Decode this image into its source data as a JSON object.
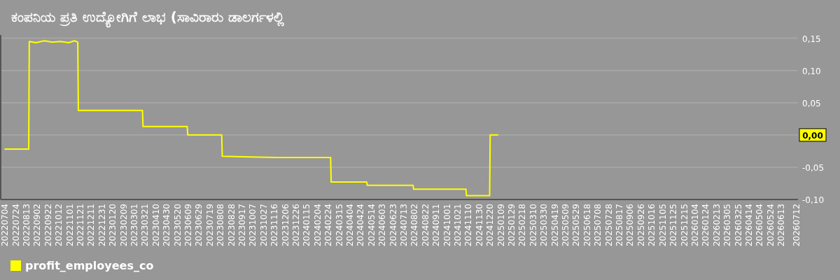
{
  "chart_data": {
    "type": "line",
    "title": "ಕಂಪನಿಯ ಪ್ರತಿ ಉದ್ಯೋಗಿಗೆ ಲಾಭ (ಸಾವಿರಾರು ಡಾಲರ್ಗಳಲ್ಲಿ",
    "series": [
      {
        "name": "profit_employees_co",
        "color": "#ffff00",
        "line_style": "solid",
        "marker": "none",
        "x": [
          "2022-07-04",
          "2022-07-20",
          "2022-08-05",
          "2022-08-17",
          "2022-08-18",
          "2022-08-30",
          "2022-09-15",
          "2022-09-30",
          "2022-10-15",
          "2022-10-30",
          "2022-11-10",
          "2022-11-16",
          "2022-11-17",
          "2023-01-10",
          "2023-03-16",
          "2023-03-17",
          "2023-06-07",
          "2023-06-08",
          "2023-08-10",
          "2023-08-11",
          "2023-10-05",
          "2023-11-20",
          "2024-02-28",
          "2024-02-29",
          "2024-05-05",
          "2024-05-06",
          "2024-07-30",
          "2024-07-31",
          "2024-11-05",
          "2024-11-06",
          "2024-12-19",
          "2024-12-20",
          "2025-01-03"
        ],
        "values": [
          -0.022,
          -0.022,
          -0.022,
          -0.022,
          0.145,
          0.143,
          0.146,
          0.144,
          0.145,
          0.143,
          0.146,
          0.144,
          0.038,
          0.038,
          0.038,
          0.013,
          0.013,
          0.0,
          0.0,
          -0.033,
          -0.034,
          -0.035,
          -0.035,
          -0.073,
          -0.073,
          -0.078,
          -0.078,
          -0.084,
          -0.084,
          -0.094,
          -0.094,
          0.0,
          0.0
        ]
      }
    ],
    "annotations": [
      "0,00"
    ],
    "xlim": [
      "2022-06-26",
      "2026-07-14"
    ],
    "xticks": [
      {
        "value": "2022-07-04",
        "label": "20220704"
      },
      {
        "value": "2022-07-24",
        "label": "20220724"
      },
      {
        "value": "2022-08-13",
        "label": "20220813"
      },
      {
        "value": "2022-09-02",
        "label": "20220902"
      },
      {
        "value": "2022-09-22",
        "label": "20220922"
      },
      {
        "value": "2022-10-12",
        "label": "20221012"
      },
      {
        "value": "2022-11-01",
        "label": "20221101"
      },
      {
        "value": "2022-11-21",
        "label": "20221121"
      },
      {
        "value": "2022-12-11",
        "label": "20221211"
      },
      {
        "value": "2022-12-31",
        "label": "20221231"
      },
      {
        "value": "2023-01-20",
        "label": "20230120"
      },
      {
        "value": "2023-02-09",
        "label": "20230209"
      },
      {
        "value": "2023-03-01",
        "label": "20230301"
      },
      {
        "value": "2023-03-21",
        "label": "20230321"
      },
      {
        "value": "2023-04-10",
        "label": "20230410"
      },
      {
        "value": "2023-04-30",
        "label": "20230430"
      },
      {
        "value": "2023-05-20",
        "label": "20230520"
      },
      {
        "value": "2023-06-09",
        "label": "20230609"
      },
      {
        "value": "2023-06-29",
        "label": "20230629"
      },
      {
        "value": "2023-07-19",
        "label": "20230719"
      },
      {
        "value": "2023-08-08",
        "label": "20230808"
      },
      {
        "value": "2023-08-28",
        "label": "20230828"
      },
      {
        "value": "2023-09-17",
        "label": "20230917"
      },
      {
        "value": "2023-10-07",
        "label": "20231007"
      },
      {
        "value": "2023-10-27",
        "label": "20231027"
      },
      {
        "value": "2023-11-16",
        "label": "20231116"
      },
      {
        "value": "2023-12-06",
        "label": "20231206"
      },
      {
        "value": "2023-12-26",
        "label": "20231226"
      },
      {
        "value": "2024-01-15",
        "label": "20240115"
      },
      {
        "value": "2024-02-04",
        "label": "20240204"
      },
      {
        "value": "2024-02-24",
        "label": "20240224"
      },
      {
        "value": "2024-03-15",
        "label": "20240315"
      },
      {
        "value": "2024-04-04",
        "label": "20240404"
      },
      {
        "value": "2024-04-24",
        "label": "20240424"
      },
      {
        "value": "2024-05-14",
        "label": "20240514"
      },
      {
        "value": "2024-06-03",
        "label": "20240603"
      },
      {
        "value": "2024-06-23",
        "label": "20240623"
      },
      {
        "value": "2024-07-13",
        "label": "20240713"
      },
      {
        "value": "2024-08-02",
        "label": "20240802"
      },
      {
        "value": "2024-08-22",
        "label": "20240822"
      },
      {
        "value": "2024-09-11",
        "label": "20240911"
      },
      {
        "value": "2024-10-01",
        "label": "20241001"
      },
      {
        "value": "2024-10-21",
        "label": "20241021"
      },
      {
        "value": "2024-11-10",
        "label": "20241110"
      },
      {
        "value": "2024-11-30",
        "label": "20241130"
      },
      {
        "value": "2024-12-20",
        "label": "20241220"
      },
      {
        "value": "2025-01-09",
        "label": "20250109"
      },
      {
        "value": "2025-01-29",
        "label": "20250129"
      },
      {
        "value": "2025-02-18",
        "label": "20250218"
      },
      {
        "value": "2025-03-10",
        "label": "20250310"
      },
      {
        "value": "2025-03-30",
        "label": "20250330"
      },
      {
        "value": "2025-04-19",
        "label": "20250419"
      },
      {
        "value": "2025-05-09",
        "label": "20250509"
      },
      {
        "value": "2025-05-29",
        "label": "20250529"
      },
      {
        "value": "2025-06-18",
        "label": "20250618"
      },
      {
        "value": "2025-07-08",
        "label": "20250708"
      },
      {
        "value": "2025-07-28",
        "label": "20250728"
      },
      {
        "value": "2025-08-17",
        "label": "20250817"
      },
      {
        "value": "2025-09-06",
        "label": "20250906"
      },
      {
        "value": "2025-09-26",
        "label": "20250926"
      },
      {
        "value": "2025-10-16",
        "label": "20251016"
      },
      {
        "value": "2025-11-05",
        "label": "20251105"
      },
      {
        "value": "2025-11-25",
        "label": "20251125"
      },
      {
        "value": "2025-12-15",
        "label": "20251215"
      },
      {
        "value": "2026-01-04",
        "label": "20260104"
      },
      {
        "value": "2026-01-24",
        "label": "20260124"
      },
      {
        "value": "2026-02-13",
        "label": "20260213"
      },
      {
        "value": "2026-03-05",
        "label": "20260305"
      },
      {
        "value": "2026-03-25",
        "label": "20260325"
      },
      {
        "value": "2026-04-14",
        "label": "20260414"
      },
      {
        "value": "2026-05-04",
        "label": "20260504"
      },
      {
        "value": "2026-05-24",
        "label": "20260524"
      },
      {
        "value": "2026-06-13",
        "label": "20260613"
      },
      {
        "value": "2026-07-12",
        "label": "20260712"
      }
    ],
    "ylim": [
      -0.1,
      0.155
    ],
    "yticks": [
      {
        "value": 0.15,
        "label": "0,15"
      },
      {
        "value": 0.1,
        "label": "0,10"
      },
      {
        "value": 0.05,
        "label": "0,05"
      },
      {
        "value": 0,
        "label": null
      },
      {
        "value": -0.05,
        "label": "-0,05"
      },
      {
        "value": -0.1,
        "label": "-0,10"
      }
    ],
    "grid": "y",
    "legend": "bottom left"
  }
}
